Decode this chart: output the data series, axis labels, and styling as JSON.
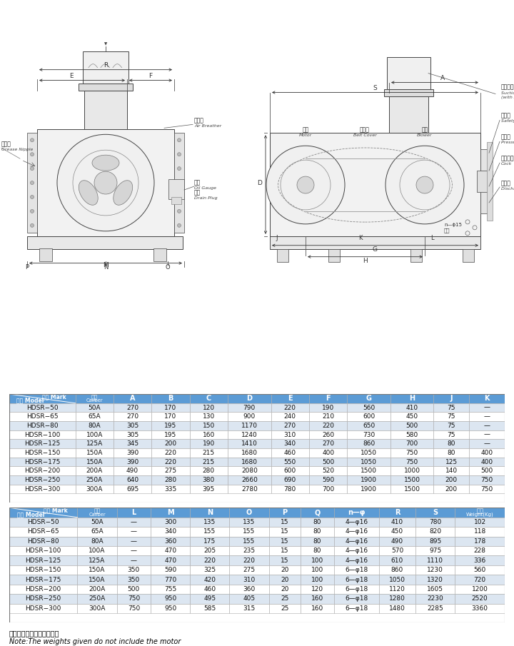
{
  "table1_columns_row1": [
    "记号 Mark",
    "口径",
    "A",
    "B",
    "C",
    "D",
    "E",
    "F",
    "G",
    "H",
    "J",
    "K"
  ],
  "table1_columns_row2": [
    "型式 Model",
    "Caliber",
    "",
    "",
    "",
    "",
    "",
    "",
    "",
    "",
    "",
    ""
  ],
  "table1_data": [
    [
      "HDSR−50",
      "50A",
      "270",
      "170",
      "120",
      "790",
      "220",
      "190",
      "560",
      "410",
      "75",
      "—"
    ],
    [
      "HDSR−65",
      "65A",
      "270",
      "170",
      "130",
      "900",
      "240",
      "210",
      "600",
      "450",
      "75",
      "—"
    ],
    [
      "HDSR−80",
      "80A",
      "305",
      "195",
      "150",
      "1170",
      "270",
      "220",
      "650",
      "500",
      "75",
      "—"
    ],
    [
      "HDSR−100",
      "100A",
      "305",
      "195",
      "160",
      "1240",
      "310",
      "260",
      "730",
      "580",
      "75",
      "—"
    ],
    [
      "HDSR−125",
      "125A",
      "345",
      "200",
      "190",
      "1410",
      "340",
      "270",
      "860",
      "700",
      "80",
      "—"
    ],
    [
      "HDSR−150",
      "150A",
      "390",
      "220",
      "215",
      "1680",
      "460",
      "400",
      "1050",
      "750",
      "80",
      "400"
    ],
    [
      "HDSR−175",
      "150A",
      "390",
      "220",
      "215",
      "1680",
      "550",
      "500",
      "1050",
      "750",
      "125",
      "400"
    ],
    [
      "HDSR−200",
      "200A",
      "490",
      "275",
      "280",
      "2080",
      "600",
      "520",
      "1500",
      "1000",
      "140",
      "500"
    ],
    [
      "HDSR−250",
      "250A",
      "640",
      "280",
      "380",
      "2660",
      "690",
      "590",
      "1900",
      "1500",
      "200",
      "750"
    ],
    [
      "HDSR−300",
      "300A",
      "695",
      "335",
      "395",
      "2780",
      "780",
      "700",
      "1900",
      "1500",
      "200",
      "750"
    ]
  ],
  "table2_columns_row1": [
    "记号 Mark",
    "口径",
    "L",
    "M",
    "N",
    "O",
    "P",
    "Q",
    "n—φ",
    "R",
    "S",
    "重量"
  ],
  "table2_columns_row2": [
    "型式 Model",
    "Caliber",
    "",
    "",
    "",
    "",
    "",
    "",
    "",
    "",
    "",
    "Weight(Kg)"
  ],
  "table2_data": [
    [
      "HDSR−50",
      "50A",
      "—",
      "300",
      "135",
      "135",
      "15",
      "80",
      "4—φ16",
      "410",
      "780",
      "102"
    ],
    [
      "HDSR−65",
      "65A",
      "—",
      "340",
      "155",
      "155",
      "15",
      "80",
      "4—φ16",
      "450",
      "820",
      "118"
    ],
    [
      "HDSR−80",
      "80A",
      "—",
      "360",
      "175",
      "155",
      "15",
      "80",
      "4—φ16",
      "490",
      "895",
      "178"
    ],
    [
      "HDSR−100",
      "100A",
      "—",
      "470",
      "205",
      "235",
      "15",
      "80",
      "4—φ16",
      "570",
      "975",
      "228"
    ],
    [
      "HDSR−125",
      "125A",
      "—",
      "470",
      "220",
      "220",
      "15",
      "100",
      "4—φ16",
      "610",
      "1110",
      "336"
    ],
    [
      "HDSR−150",
      "150A",
      "350",
      "590",
      "325",
      "275",
      "20",
      "100",
      "6—φ18",
      "860",
      "1230",
      "560"
    ],
    [
      "HDSR−175",
      "150A",
      "350",
      "770",
      "420",
      "310",
      "20",
      "100",
      "6—φ18",
      "1050",
      "1320",
      "720"
    ],
    [
      "HDSR−200",
      "200A",
      "500",
      "755",
      "460",
      "360",
      "20",
      "120",
      "6—φ18",
      "1120",
      "1605",
      "1200"
    ],
    [
      "HDSR−250",
      "250A",
      "750",
      "950",
      "495",
      "405",
      "25",
      "160",
      "6—φ18",
      "1280",
      "2230",
      "2520"
    ],
    [
      "HDSR−300",
      "300A",
      "750",
      "950",
      "585",
      "315",
      "25",
      "160",
      "6—φ18",
      "1480",
      "2285",
      "3360"
    ]
  ],
  "note_cn": "注：重量中不包括电机重量",
  "note_en": "Note:The weights given do not include the motor",
  "header_bg": "#5b9bd5",
  "row_bg_light": "#ffffff",
  "row_bg_gray": "#dce6f1"
}
